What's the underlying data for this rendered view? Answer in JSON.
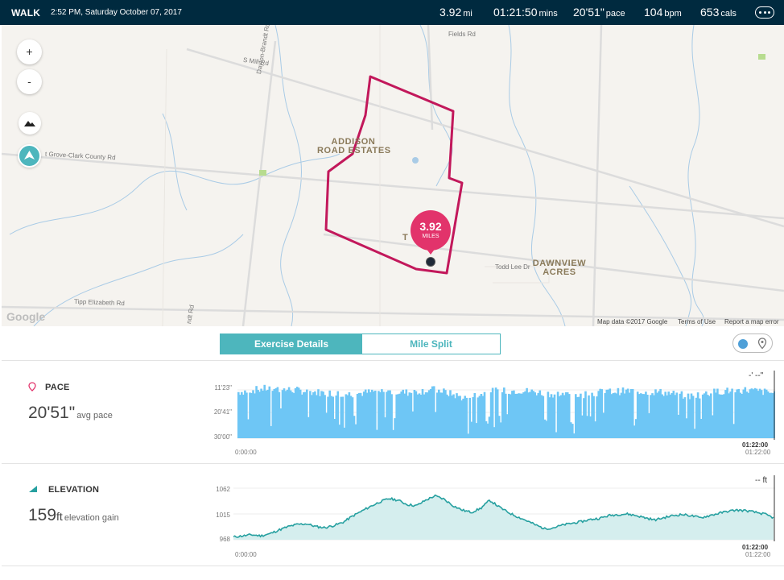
{
  "header": {
    "activity_type": "WALK",
    "datetime": "2:52 PM, Saturday October 07, 2017",
    "stats": [
      {
        "value": "3.92",
        "unit": "mi"
      },
      {
        "value": "01:21:50",
        "unit": "mins"
      },
      {
        "value": "20'51\"",
        "unit": "pace"
      },
      {
        "value": "104",
        "unit": "bpm"
      },
      {
        "value": "653",
        "unit": "cals"
      }
    ],
    "more_icon": "ellipsis-icon"
  },
  "map": {
    "zoom_in": "+",
    "zoom_out": "-",
    "road_labels": [
      "Fields Rd",
      "S Mill Rd",
      "Dayton-Brandt Rd",
      "t Grove-Clark County Rd",
      "Tipp Elizabeth Rd",
      "Todd Lee Dr",
      "ndt Rd"
    ],
    "places": [
      "ADDISON\nROAD ESTATES",
      "T      ODS",
      "DAWNVIEW\nACRES"
    ],
    "marker": {
      "value": "3.92",
      "unit": "MILES"
    },
    "provider": "Google",
    "attribution": "Map data ©2017 Google",
    "terms": "Terms of Use",
    "report": "Report a map error",
    "route_color": "#c2185b"
  },
  "tabs": [
    {
      "label": "Exercise Details",
      "active": true
    },
    {
      "label": "Mile Split",
      "active": false
    }
  ],
  "pace": {
    "title": "PACE",
    "value": "20'51\"",
    "sub": "avg pace",
    "y_ticks": [
      "11'23\"",
      "20'41\"",
      "30'00\""
    ],
    "x_start": "0:00:00",
    "x_end_bold": "01:22:00",
    "x_end": "01:22:00",
    "corner": "-' --\"",
    "color": "#6ec6f5"
  },
  "elevation": {
    "title": "ELEVATION",
    "value": "159",
    "unit": "ft",
    "sub": "elevation gain",
    "y_ticks": [
      "1062",
      "1015",
      "968"
    ],
    "x_start": "0:00:00",
    "x_end_bold": "01:22:00",
    "x_end": "01:22:00",
    "corner": "-- ft",
    "color": "#26a0a0"
  },
  "chart_data": [
    {
      "type": "area",
      "title": "PACE",
      "x_range": [
        "0:00:00",
        "01:22:00"
      ],
      "y_ticks": [
        "11'23\"",
        "20'41\"",
        "30'00\""
      ],
      "series": [
        {
          "values_min_per_mile": [
            15.2,
            13.8,
            14.5,
            15.5,
            16.0,
            14.9,
            15.4,
            14.2,
            17.5,
            15.0,
            14.6,
            15.8,
            16.4,
            15.1,
            14.8,
            15.3,
            16.8,
            15.0,
            14.4,
            15.6
          ]
        }
      ]
    },
    {
      "type": "area",
      "title": "ELEVATION",
      "x_range": [
        "0:00:00",
        "01:22:00"
      ],
      "y_ticks": [
        1062,
        1015,
        968
      ],
      "series": [
        {
          "values_ft": [
            973,
            975,
            977,
            975,
            979,
            986,
            992,
            996,
            997,
            992,
            990,
            994,
            1000,
            1011,
            1020,
            1029,
            1037,
            1043,
            1040,
            1032,
            1030,
            1040,
            1048,
            1042,
            1030,
            1022,
            1018,
            1025,
            1040,
            1028,
            1018,
            1010,
            1003,
            995,
            988,
            990,
            995,
            998,
            1001,
            1005,
            1007,
            1012,
            1014,
            1015,
            1012,
            1008,
            1004,
            1008,
            1012,
            1014,
            1012,
            1008,
            1012,
            1016,
            1020,
            1022,
            1021,
            1018,
            1015,
            1008
          ]
        }
      ]
    }
  ]
}
